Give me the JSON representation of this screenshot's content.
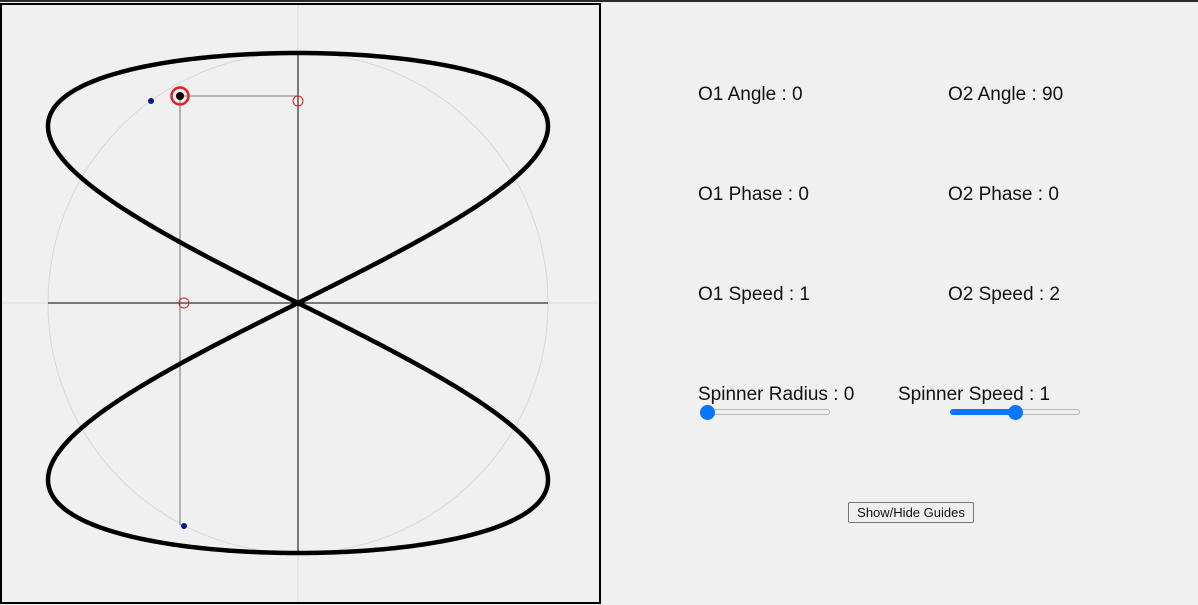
{
  "controls": {
    "o1_angle": "O1 Angle : 0",
    "o2_angle": "O2 Angle : 90",
    "o1_phase": "O1 Phase : 0",
    "o2_phase": "O2 Phase : 0",
    "o1_speed": "O1 Speed : 1",
    "o2_speed": "O2 Speed : 2",
    "spinner_radius_label": "Spinner Radius : 0",
    "spinner_speed_label": "Spinner Speed : 1"
  },
  "sliders": {
    "spinner_radius": {
      "value": 0,
      "min": 0,
      "max": 100,
      "fraction": 0.0
    },
    "spinner_speed": {
      "value": 1,
      "fraction": 0.5
    }
  },
  "button": {
    "guides_label": "Show/Hide Guides"
  },
  "colors": {
    "curve": "#000000",
    "guide_circle": "#d8d8d8",
    "axes": "#000000",
    "marker_red": "#e02020",
    "marker_blue": "#0a1a8a",
    "slider_accent": "#0a75ff"
  }
}
